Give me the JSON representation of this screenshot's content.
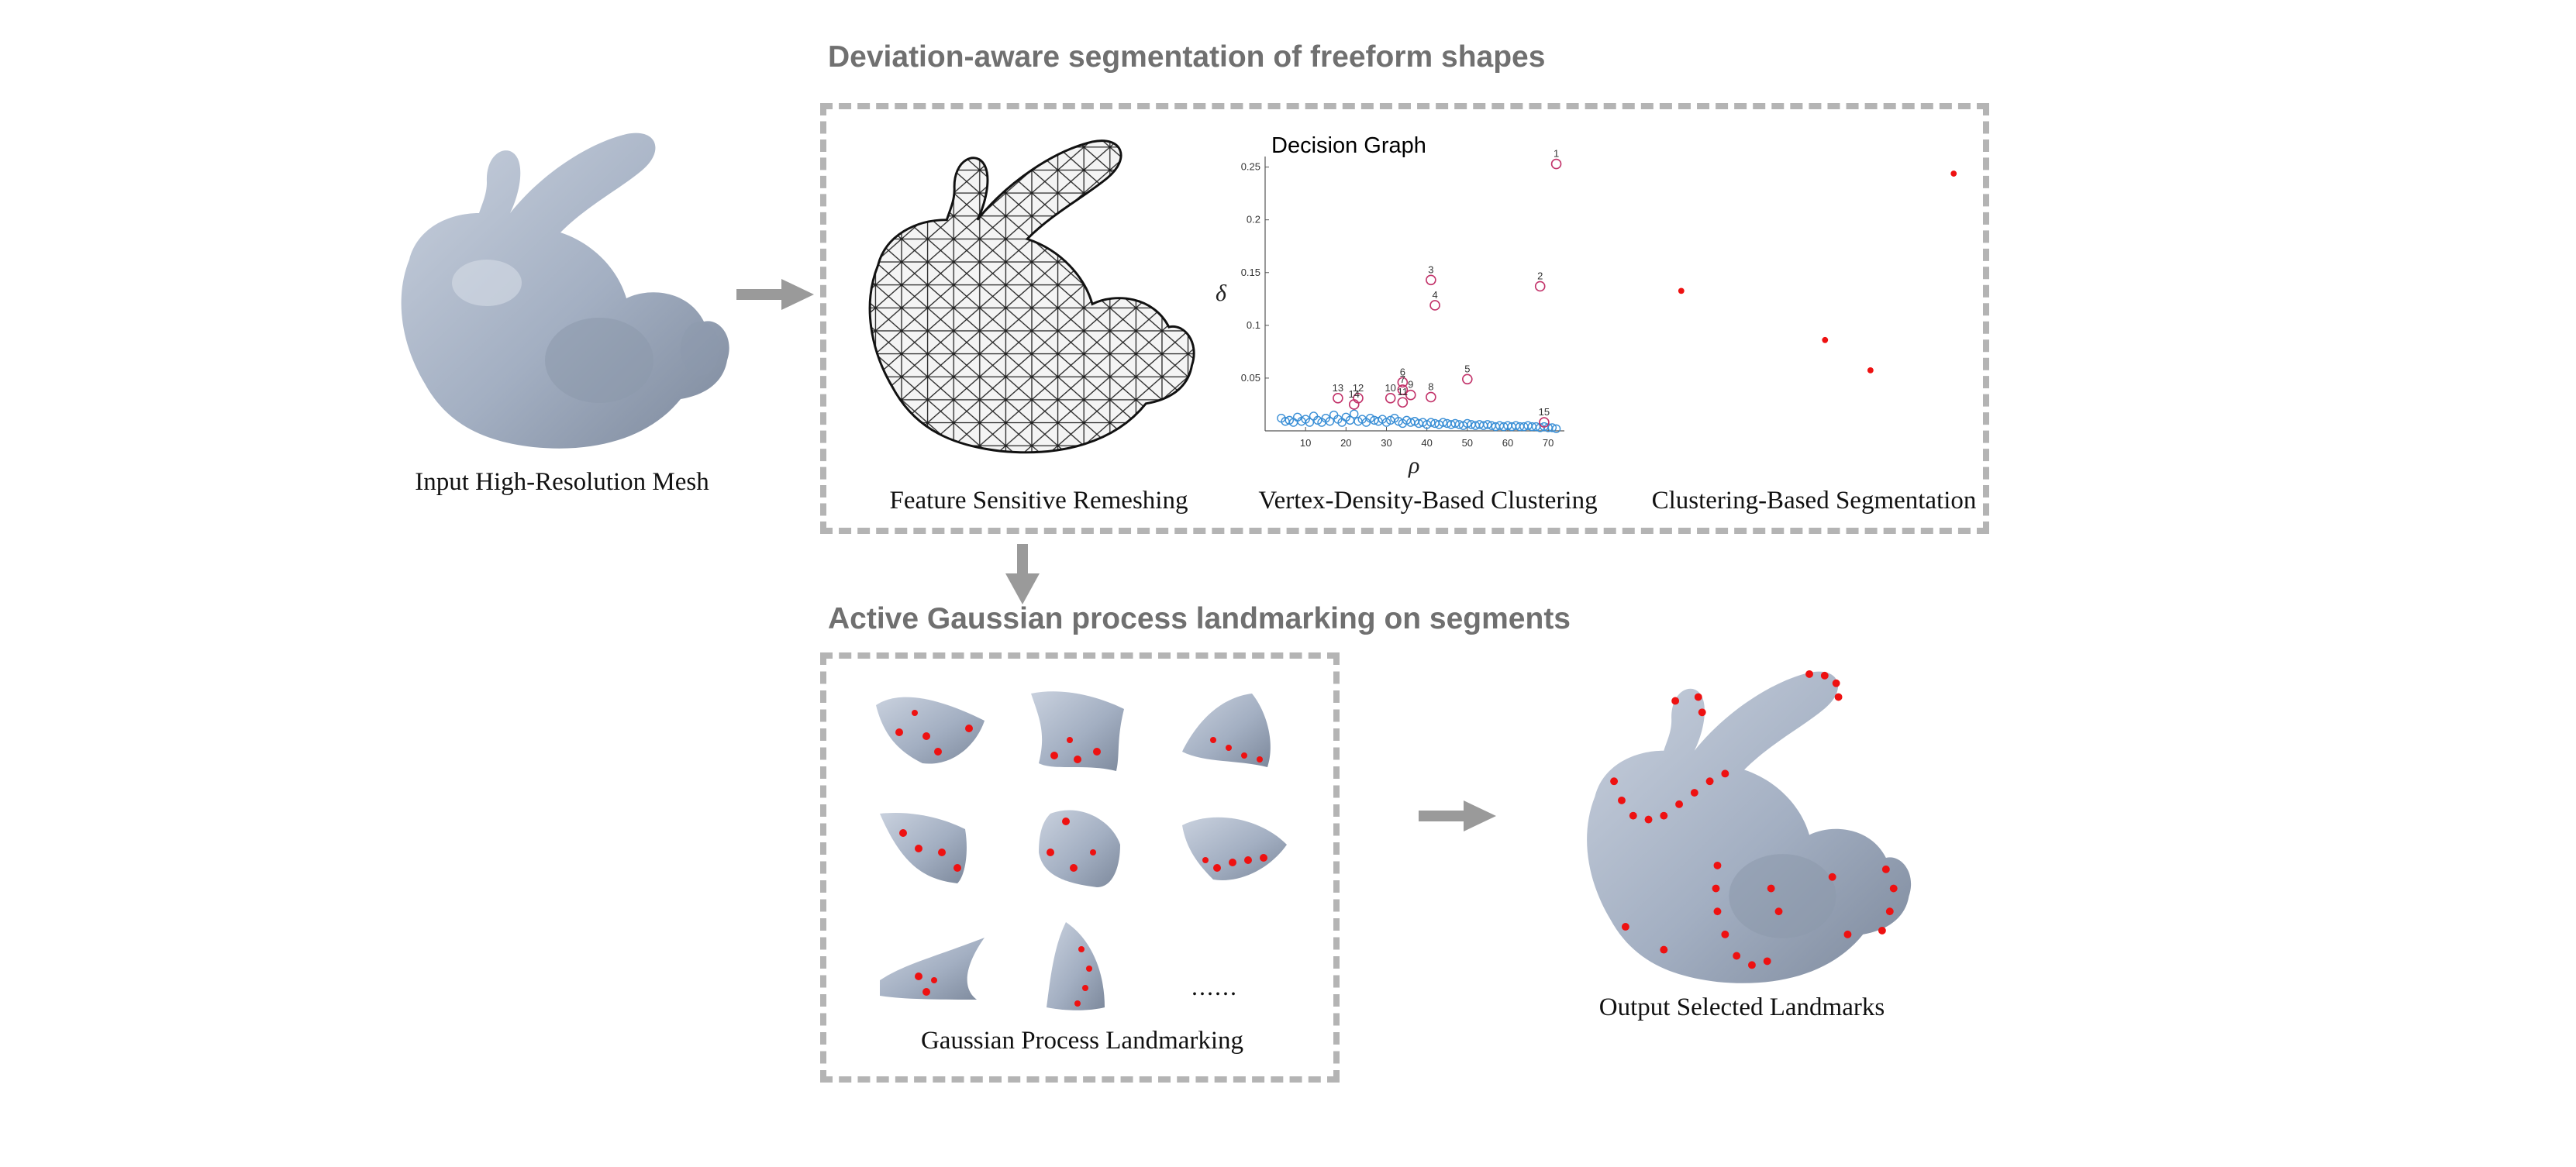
{
  "headings": {
    "segmentation": "Deviation-aware segmentation of freeform shapes",
    "landmarking": "Active Gaussian process landmarking on segments"
  },
  "captions": {
    "input_mesh": "Input High-Resolution Mesh",
    "remeshing": "Feature Sensitive Remeshing",
    "clustering": "Vertex-Density-Based Clustering",
    "segmentation": "Clustering-Based Segmentation",
    "gp_landmarking": "Gaussian Process Landmarking",
    "output": "Output Selected Landmarks"
  },
  "ellipsis": "......",
  "colors": {
    "bunny_fill": "#a3afc2",
    "arrow": "#9a9a9a",
    "dash": "#b4b4b4",
    "heading": "#707070",
    "landmark": "#ee1111",
    "scatter": "#3a8fd6",
    "center_ring": "#c2336a"
  },
  "chart_data": {
    "type": "scatter",
    "title": "Decision Graph",
    "xlabel": "ρ",
    "ylabel": "δ",
    "xlim": [
      0,
      74
    ],
    "ylim": [
      0,
      0.26
    ],
    "xticks": [
      10,
      20,
      30,
      40,
      50,
      60,
      70
    ],
    "yticks": [
      0.05,
      0.1,
      0.15,
      0.2,
      0.25
    ],
    "ytick_labels": [
      "0.05",
      "0.1",
      "0.15",
      "0.2",
      "0.25"
    ],
    "cluster_centers": [
      {
        "label": "1",
        "rho": 72,
        "delta": 0.253
      },
      {
        "label": "2",
        "rho": 68,
        "delta": 0.137
      },
      {
        "label": "3",
        "rho": 41,
        "delta": 0.143
      },
      {
        "label": "4",
        "rho": 42,
        "delta": 0.119
      },
      {
        "label": "5",
        "rho": 50,
        "delta": 0.049
      },
      {
        "label": "6",
        "rho": 34,
        "delta": 0.046
      },
      {
        "label": "7",
        "rho": 34,
        "delta": 0.039
      },
      {
        "label": "8",
        "rho": 41,
        "delta": 0.032
      },
      {
        "label": "9",
        "rho": 36,
        "delta": 0.034
      },
      {
        "label": "10",
        "rho": 31,
        "delta": 0.031
      },
      {
        "label": "11",
        "rho": 34,
        "delta": 0.027
      },
      {
        "label": "12",
        "rho": 23,
        "delta": 0.031
      },
      {
        "label": "13",
        "rho": 18,
        "delta": 0.031
      },
      {
        "label": "14",
        "rho": 22,
        "delta": 0.025
      },
      {
        "label": "15",
        "rho": 69,
        "delta": 0.008
      }
    ],
    "background_points": [
      [
        4,
        0.012
      ],
      [
        5,
        0.009
      ],
      [
        6,
        0.01
      ],
      [
        7,
        0.008
      ],
      [
        8,
        0.013
      ],
      [
        9,
        0.009
      ],
      [
        10,
        0.011
      ],
      [
        11,
        0.008
      ],
      [
        12,
        0.014
      ],
      [
        13,
        0.01
      ],
      [
        14,
        0.008
      ],
      [
        15,
        0.012
      ],
      [
        16,
        0.009
      ],
      [
        17,
        0.015
      ],
      [
        18,
        0.011
      ],
      [
        19,
        0.008
      ],
      [
        20,
        0.013
      ],
      [
        21,
        0.01
      ],
      [
        22,
        0.016
      ],
      [
        23,
        0.009
      ],
      [
        24,
        0.011
      ],
      [
        25,
        0.008
      ],
      [
        26,
        0.012
      ],
      [
        27,
        0.01
      ],
      [
        28,
        0.009
      ],
      [
        29,
        0.011
      ],
      [
        30,
        0.008
      ],
      [
        31,
        0.01
      ],
      [
        32,
        0.012
      ],
      [
        33,
        0.009
      ],
      [
        34,
        0.007
      ],
      [
        35,
        0.01
      ],
      [
        36,
        0.008
      ],
      [
        37,
        0.009
      ],
      [
        38,
        0.007
      ],
      [
        39,
        0.008
      ],
      [
        40,
        0.006
      ],
      [
        41,
        0.008
      ],
      [
        42,
        0.007
      ],
      [
        43,
        0.006
      ],
      [
        44,
        0.008
      ],
      [
        45,
        0.007
      ],
      [
        46,
        0.006
      ],
      [
        47,
        0.007
      ],
      [
        48,
        0.006
      ],
      [
        49,
        0.005
      ],
      [
        50,
        0.007
      ],
      [
        51,
        0.006
      ],
      [
        52,
        0.005
      ],
      [
        53,
        0.006
      ],
      [
        54,
        0.005
      ],
      [
        55,
        0.006
      ],
      [
        56,
        0.005
      ],
      [
        57,
        0.004
      ],
      [
        58,
        0.005
      ],
      [
        59,
        0.004
      ],
      [
        60,
        0.005
      ],
      [
        61,
        0.004
      ],
      [
        62,
        0.005
      ],
      [
        63,
        0.004
      ],
      [
        64,
        0.004
      ],
      [
        65,
        0.005
      ],
      [
        66,
        0.004
      ],
      [
        67,
        0.004
      ],
      [
        68,
        0.003
      ],
      [
        69,
        0.004
      ],
      [
        70,
        0.003
      ],
      [
        71,
        0.003
      ],
      [
        72,
        0.002
      ]
    ]
  }
}
